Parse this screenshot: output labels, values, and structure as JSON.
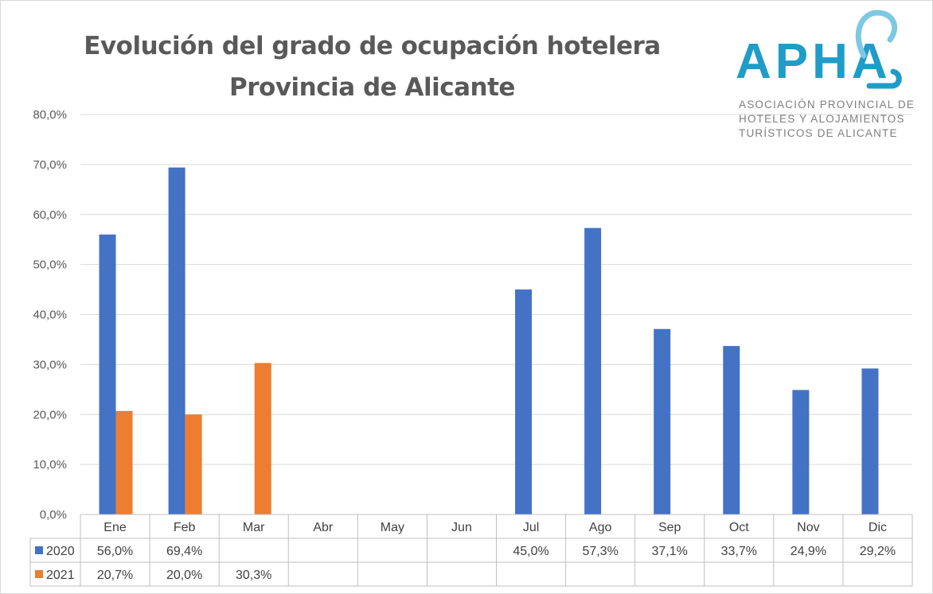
{
  "title_line1": "Evolución del grado de ocupación hotelera",
  "title_line2": "Provincia de Alicante",
  "logo": {
    "name": "APHA",
    "line1": "ASOCIACIÓN PROVINCIAL DE",
    "line2": "HOTELES Y ALOJAMIENTOS",
    "line3": "TURÍSTICOS DE ALICANTE",
    "colors": {
      "primary": "#1f9cc8",
      "accent": "#7ec8e3"
    }
  },
  "chart_data": {
    "type": "bar",
    "title": "Evolución del grado de ocupación hotelera Provincia de Alicante",
    "categories": [
      "Ene",
      "Feb",
      "Mar",
      "Abr",
      "May",
      "Jun",
      "Jul",
      "Ago",
      "Sep",
      "Oct",
      "Nov",
      "Dic"
    ],
    "series": [
      {
        "name": "2020",
        "color": "#4472c4",
        "values": [
          56.0,
          69.4,
          null,
          null,
          null,
          null,
          45.0,
          57.3,
          37.1,
          33.7,
          24.9,
          29.2
        ],
        "labels": [
          "56,0%",
          "69,4%",
          "",
          "",
          "",
          "",
          "45,0%",
          "57,3%",
          "37,1%",
          "33,7%",
          "24,9%",
          "29,2%"
        ]
      },
      {
        "name": "2021",
        "color": "#ed7d31",
        "values": [
          20.7,
          20.0,
          30.3,
          null,
          null,
          null,
          null,
          null,
          null,
          null,
          null,
          null
        ],
        "labels": [
          "20,7%",
          "20,0%",
          "30,3%",
          "",
          "",
          "",
          "",
          "",
          "",
          "",
          "",
          ""
        ]
      }
    ],
    "ylim": [
      0,
      80
    ],
    "yticks": [
      "0,0%",
      "10,0%",
      "20,0%",
      "30,0%",
      "40,0%",
      "50,0%",
      "60,0%",
      "70,0%",
      "80,0%"
    ],
    "grid": true,
    "legend": "data-table-below",
    "xlabel": "",
    "ylabel": ""
  }
}
